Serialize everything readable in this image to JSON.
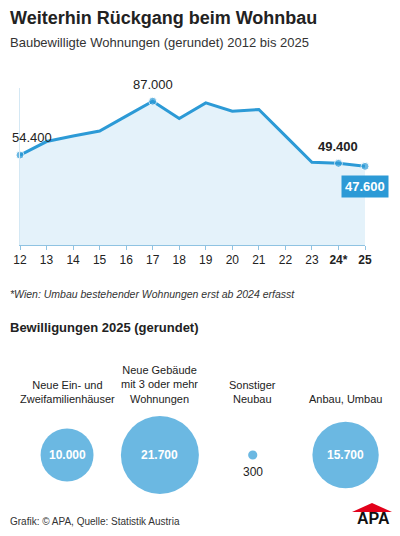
{
  "chart_data": [
    {
      "type": "line",
      "title": "Weiterhin Rückgang beim Wohnbau",
      "subtitle": "Baubewilligte Wohnungen (gerundet) 2012 bis 2025",
      "categories": [
        "12",
        "13",
        "14",
        "15",
        "16",
        "17",
        "18",
        "19",
        "20",
        "21",
        "22",
        "23",
        "24*",
        "25"
      ],
      "values": [
        54400,
        62600,
        66000,
        69000,
        78000,
        87000,
        76500,
        86000,
        81000,
        82000,
        66000,
        50000,
        49400,
        47600
      ],
      "value_labels": [
        "54.400",
        null,
        null,
        null,
        null,
        "87.000",
        null,
        null,
        null,
        null,
        null,
        null,
        "49.400",
        "47.600"
      ],
      "data_labels": true,
      "color": "#2c9ad6",
      "ylim": [
        0,
        95000
      ],
      "yticks": [],
      "tick_labels": "x",
      "grid": false,
      "annotations": [
        "*Wien: Umbau bestehender Wohnungen erst ab 2024 erfasst"
      ]
    },
    {
      "type": "bubble",
      "title": "Bewilligungen 2025 (gerundet)",
      "categories": [
        "Neue Ein- und Zweifamilienhäuser",
        "Neue Gebäude mit 3 oder mehr Wohnungen",
        "Sonstiger Neubau",
        "Anbau, Umbau"
      ],
      "values": [
        10000,
        21700,
        300,
        15700
      ],
      "value_labels": [
        "10.000",
        "21.700",
        "300",
        "15.700"
      ],
      "data_labels": true,
      "color": "#2c9ad6",
      "tick_labels": false
    }
  ],
  "source": "Grafik: © APA, Quelle: Statistik Austria",
  "logo": "APA"
}
